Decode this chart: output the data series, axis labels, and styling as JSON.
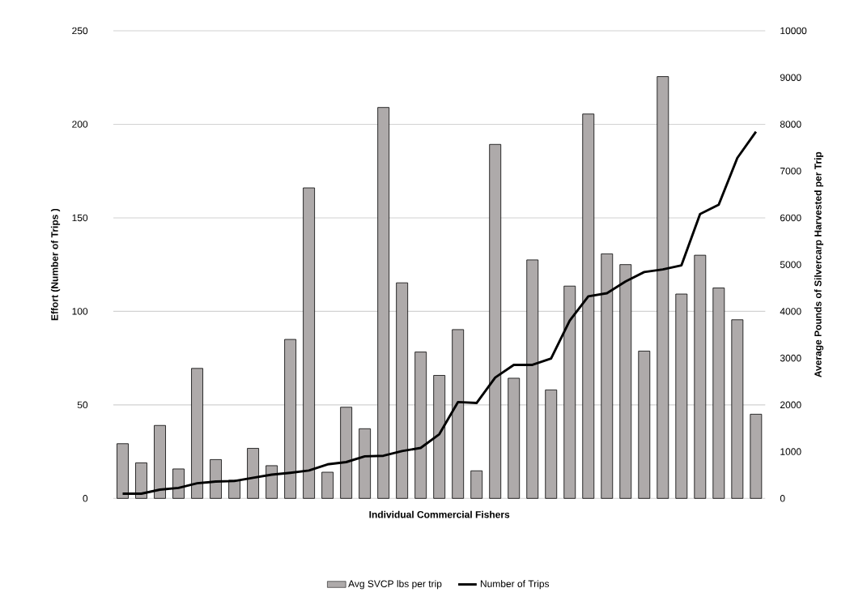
{
  "chart_data": {
    "type": "bar",
    "xlabel": "Individual Commercial Fishers",
    "ylabel": "Effort (Number of Trips )",
    "y2label": "Average Pounds of Silvercarp Harvested per Trip",
    "categories": [
      null,
      null,
      null,
      null,
      null,
      null,
      null,
      null,
      null,
      null,
      null,
      null,
      null,
      null,
      null,
      null,
      null,
      null,
      null,
      null,
      null,
      null,
      null,
      null,
      null,
      null,
      null,
      null,
      null,
      null,
      null,
      null,
      null,
      null,
      null
    ],
    "series": [
      {
        "name": "Avg SVCP lbs per trip",
        "axis": "y2",
        "color": "#aeaaaa",
        "values": [
          1170,
          760,
          1560,
          630,
          2780,
          830,
          390,
          1070,
          700,
          3400,
          6640,
          560,
          1950,
          1490,
          8360,
          4610,
          3130,
          2630,
          3610,
          590,
          7570,
          2570,
          5100,
          2320,
          4540,
          8220,
          5230,
          5000,
          3150,
          9020,
          4370,
          5200,
          4500,
          3820,
          1800
        ]
      },
      {
        "name": "Number of Trips",
        "type": "line",
        "color": "#000000",
        "values": [
          2.5,
          2.5,
          4.7,
          5.6,
          8.1,
          9,
          9.3,
          11,
          12.7,
          13.7,
          14.9,
          18.2,
          19.4,
          22.5,
          22.8,
          25.3,
          27,
          34.3,
          51.5,
          51,
          64.6,
          71.4,
          71.4,
          74.8,
          95,
          108,
          109.7,
          116,
          121,
          122.4,
          124.6,
          152,
          157,
          182,
          196
        ]
      }
    ],
    "ylim": [
      0,
      250
    ],
    "yticks": [
      0,
      50,
      100,
      150,
      200,
      250
    ],
    "y2lim": [
      0,
      10000
    ],
    "y2ticks": [
      0,
      1000,
      2000,
      3000,
      4000,
      5000,
      6000,
      7000,
      8000,
      9000,
      10000
    ],
    "grid": "y",
    "legend": "bottom"
  }
}
